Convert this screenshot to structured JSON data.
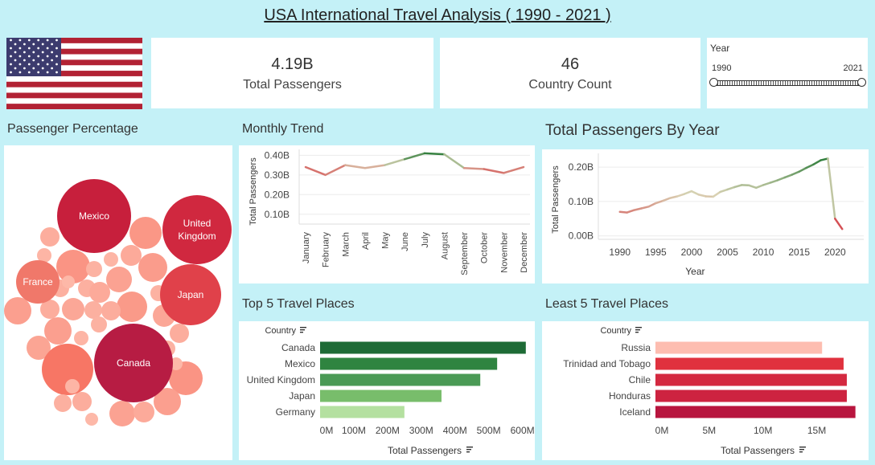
{
  "page": {
    "title": "USA International Travel Analysis ( 1990 - 2021 )"
  },
  "colors": {
    "background": "#c4f1f7",
    "flag_red": "#b22234",
    "flag_blue": "#3c3b6e"
  },
  "kpis": [
    {
      "value": "4.19B",
      "label": "Total Passengers"
    },
    {
      "value": "46",
      "label": "Country Count"
    }
  ],
  "year_filter": {
    "label": "Year",
    "min": "1990",
    "max": "2021"
  },
  "sections": {
    "bubbles": "Passenger Percentage",
    "monthly": "Monthly Trend",
    "yearly": "Total Passengers By Year",
    "top5": "Top 5 Travel Places",
    "least5": "Least 5 Travel Places"
  },
  "chart_data": [
    {
      "id": "bubbles",
      "type": "bubble",
      "labeled": [
        {
          "name": "Mexico"
        },
        {
          "name": "United Kingdom"
        },
        {
          "name": "France"
        },
        {
          "name": "Japan"
        },
        {
          "name": "Canada"
        }
      ]
    },
    {
      "id": "monthly",
      "type": "line",
      "ylabel": "Total Passengers",
      "ylim": [
        0.05,
        0.43
      ],
      "yticks": [
        "0.10B",
        "0.20B",
        "0.30B",
        "0.40B"
      ],
      "categories": [
        "January",
        "February",
        "March",
        "April",
        "May",
        "June",
        "July",
        "August",
        "September",
        "October",
        "November",
        "December"
      ],
      "values": [
        0.34,
        0.3,
        0.35,
        0.335,
        0.35,
        0.38,
        0.41,
        0.405,
        0.335,
        0.33,
        0.31,
        0.34
      ]
    },
    {
      "id": "yearly",
      "type": "line",
      "xlabel": "Year",
      "ylabel": "Total Passengers",
      "xlim": [
        1987,
        2024
      ],
      "ylim": [
        -0.01,
        0.24
      ],
      "xticks": [
        "1990",
        "1995",
        "2000",
        "2005",
        "2010",
        "2015",
        "2020"
      ],
      "yticks": [
        "0.00B",
        "0.10B",
        "0.20B"
      ],
      "x": [
        1990,
        1991,
        1992,
        1993,
        1994,
        1995,
        1996,
        1997,
        1998,
        1999,
        2000,
        2001,
        2002,
        2003,
        2004,
        2005,
        2006,
        2007,
        2008,
        2009,
        2010,
        2011,
        2012,
        2013,
        2014,
        2015,
        2016,
        2017,
        2018,
        2019,
        2020,
        2021
      ],
      "values": [
        0.07,
        0.068,
        0.075,
        0.08,
        0.085,
        0.095,
        0.102,
        0.11,
        0.115,
        0.122,
        0.13,
        0.12,
        0.115,
        0.114,
        0.128,
        0.135,
        0.142,
        0.148,
        0.147,
        0.14,
        0.148,
        0.155,
        0.162,
        0.17,
        0.178,
        0.187,
        0.198,
        0.208,
        0.22,
        0.225,
        0.05,
        0.02
      ]
    },
    {
      "id": "top5",
      "type": "bar",
      "header": "Country",
      "xlabel": "Total Passengers",
      "xlim": [
        0,
        620
      ],
      "xticks": [
        "0M",
        "100M",
        "200M",
        "300M",
        "400M",
        "500M",
        "600M"
      ],
      "categories": [
        "Canada",
        "Mexico",
        "United Kingdom",
        "Japan",
        "Germany"
      ],
      "values": [
        610,
        525,
        475,
        360,
        250
      ]
    },
    {
      "id": "least5",
      "type": "bar",
      "header": "Country",
      "xlabel": "Total Passengers",
      "xlim": [
        0,
        19
      ],
      "xticks": [
        "0M",
        "5M",
        "10M",
        "15M"
      ],
      "categories": [
        "Russia",
        "Trinidad and Tobago",
        "Chile",
        "Honduras",
        "Iceland"
      ],
      "values": [
        15.5,
        17.5,
        17.8,
        17.8,
        18.6
      ]
    }
  ]
}
